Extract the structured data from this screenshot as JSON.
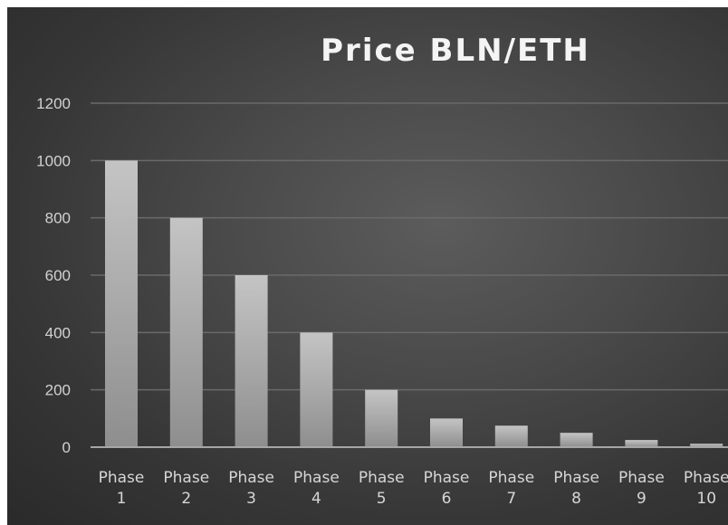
{
  "chart_data": {
    "type": "bar",
    "title": "Price BLN/ETH",
    "xlabel": "",
    "ylabel": "",
    "categories": [
      [
        "Phase",
        "1"
      ],
      [
        "Phase",
        "2"
      ],
      [
        "Phase",
        "3"
      ],
      [
        "Phase",
        "4"
      ],
      [
        "Phase",
        "5"
      ],
      [
        "Phase",
        "6"
      ],
      [
        "Phase",
        "7"
      ],
      [
        "Phase",
        "8"
      ],
      [
        "Phase",
        "9"
      ],
      [
        "Phase",
        "10"
      ]
    ],
    "values": [
      1000,
      800,
      600,
      400,
      200,
      100,
      75,
      50,
      25,
      12
    ],
    "ylim": [
      0,
      1200
    ],
    "yticks": [
      0,
      200,
      400,
      600,
      800,
      1000,
      1200
    ],
    "grid": true,
    "legend": "none",
    "colors": {
      "bar_light": "#c4c4c4",
      "bar_dark": "#8e8e8e",
      "gridline": "#6a6a6a",
      "axis_line": "#a6a6a6",
      "text": "#d2d2d2",
      "title": "#f4f4f4"
    }
  }
}
